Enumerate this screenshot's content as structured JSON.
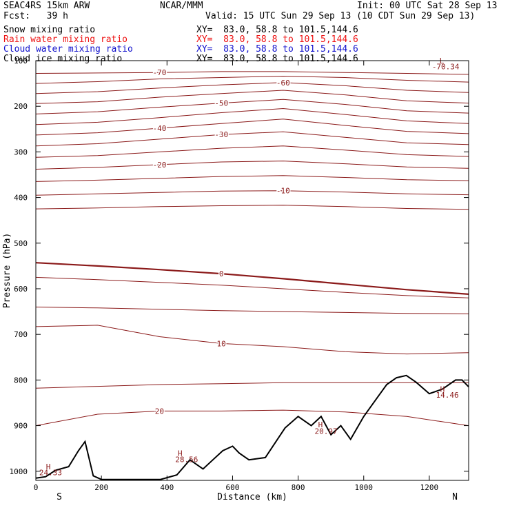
{
  "header": {
    "model": "SEAC4RS 15km ARW",
    "center": "NCAR/MMM",
    "init": "Init: 00 UTC Sat 28 Sep 13",
    "fcst": "Fcst:   39 h",
    "valid": "Valid: 15 UTC Sun 29 Sep 13 (10 CDT Sun 29 Sep 13)"
  },
  "fields": [
    {
      "label": "Snow mixing ratio",
      "xy": "XY=  83.0, 58.8 to 101.5,144.6",
      "color": "#000000"
    },
    {
      "label": "Rain water mixing ratio",
      "xy": "XY=  83.0, 58.8 to 101.5,144.6",
      "color": "#ee1111"
    },
    {
      "label": "Cloud water mixing ratio",
      "xy": "XY=  83.0, 58.8 to 101.5,144.6",
      "color": "#1111cc"
    },
    {
      "label": "Cloud ice mixing ratio",
      "xy": "XY=  83.0, 58.8 to 101.5,144.6",
      "color": "#000000"
    }
  ],
  "chart_data": {
    "type": "line",
    "xlabel": "Distance (km)",
    "ylabel": "Pressure (hPa)",
    "xlim": [
      0,
      1320
    ],
    "ylim": [
      1020,
      100
    ],
    "x_ticks": [
      0,
      200,
      400,
      600,
      800,
      1000,
      1200
    ],
    "y_ticks": [
      100,
      200,
      300,
      400,
      500,
      600,
      700,
      800,
      900,
      1000
    ],
    "end_labels": {
      "left": "S",
      "right": "N"
    },
    "contour_color": "#8b1a1a",
    "isotherms": [
      {
        "label": "-70",
        "p": [
          128,
          127,
          126,
          124,
          124,
          126,
          128,
          130
        ]
      },
      {
        "label": "",
        "p": [
          150,
          146,
          140,
          137,
          134,
          137,
          143,
          147
        ]
      },
      {
        "label": "-60",
        "p": [
          172,
          168,
          160,
          153,
          148,
          155,
          165,
          170
        ]
      },
      {
        "label": "",
        "p": [
          194,
          190,
          180,
          172,
          165,
          175,
          188,
          193
        ]
      },
      {
        "label": "-50",
        "p": [
          217,
          212,
          202,
          193,
          185,
          196,
          210,
          215
        ]
      },
      {
        "label": "",
        "p": [
          240,
          235,
          225,
          214,
          205,
          218,
          232,
          238
        ]
      },
      {
        "label": "-40",
        "p": [
          263,
          258,
          248,
          238,
          228,
          242,
          255,
          260
        ]
      },
      {
        "label": "-30",
        "p": [
          287,
          282,
          272,
          262,
          256,
          268,
          280,
          284
        ]
      },
      {
        "label": "",
        "p": [
          312,
          308,
          300,
          292,
          287,
          296,
          306,
          310
        ]
      },
      {
        "label": "-20",
        "p": [
          338,
          334,
          328,
          322,
          320,
          326,
          333,
          336
        ]
      },
      {
        "label": "",
        "p": [
          365,
          362,
          358,
          354,
          352,
          356,
          361,
          363
        ]
      },
      {
        "label": "-10",
        "p": [
          395,
          392,
          389,
          386,
          385,
          388,
          392,
          394
        ]
      },
      {
        "label": "",
        "p": [
          425,
          423,
          420,
          418,
          417,
          420,
          424,
          426
        ]
      },
      {
        "label": "0",
        "bold": true,
        "p": [
          543,
          550,
          558,
          567,
          578,
          590,
          602,
          612
        ]
      },
      {
        "label": "",
        "p": [
          575,
          580,
          586,
          592,
          600,
          608,
          615,
          620
        ]
      },
      {
        "label": "",
        "p": [
          640,
          642,
          645,
          648,
          650,
          652,
          654,
          655
        ]
      },
      {
        "label": "10",
        "p": [
          683,
          680,
          705,
          720,
          727,
          738,
          743,
          740
        ]
      },
      {
        "label": "",
        "p": [
          818,
          814,
          810,
          808,
          806,
          806,
          806,
          806
        ]
      },
      {
        "label": "20",
        "p": [
          900,
          875,
          868,
          868,
          866,
          870,
          880,
          900
        ]
      }
    ],
    "terrain": {
      "x": [
        0,
        30,
        60,
        100,
        130,
        150,
        175,
        200,
        240,
        300,
        380,
        430,
        470,
        510,
        540,
        570,
        600,
        620,
        650,
        700,
        760,
        800,
        840,
        870,
        900,
        930,
        960,
        1000,
        1040,
        1070,
        1100,
        1130,
        1160,
        1200,
        1240,
        1280,
        1300,
        1320
      ],
      "p": [
        1015,
        1012,
        998,
        990,
        955,
        935,
        1010,
        1018,
        1018,
        1018,
        1018,
        1008,
        975,
        995,
        975,
        955,
        945,
        960,
        975,
        970,
        905,
        880,
        900,
        880,
        920,
        900,
        930,
        880,
        840,
        810,
        795,
        790,
        805,
        830,
        820,
        800,
        800,
        815
      ]
    },
    "annotations": [
      {
        "text": "L",
        "x": 1238,
        "p": 100
      },
      {
        "text": "-70.34",
        "x": 1250,
        "p": 113
      },
      {
        "text": "H",
        "x": 38,
        "p": 990
      },
      {
        "text": "24.33",
        "x": 45,
        "p": 1003
      },
      {
        "text": "H",
        "x": 440,
        "p": 960
      },
      {
        "text": "28.56",
        "x": 460,
        "p": 974
      },
      {
        "text": "H",
        "x": 868,
        "p": 898
      },
      {
        "text": "20.97",
        "x": 885,
        "p": 912
      },
      {
        "text": "H",
        "x": 1240,
        "p": 820
      },
      {
        "text": "14.46",
        "x": 1255,
        "p": 833
      }
    ]
  }
}
